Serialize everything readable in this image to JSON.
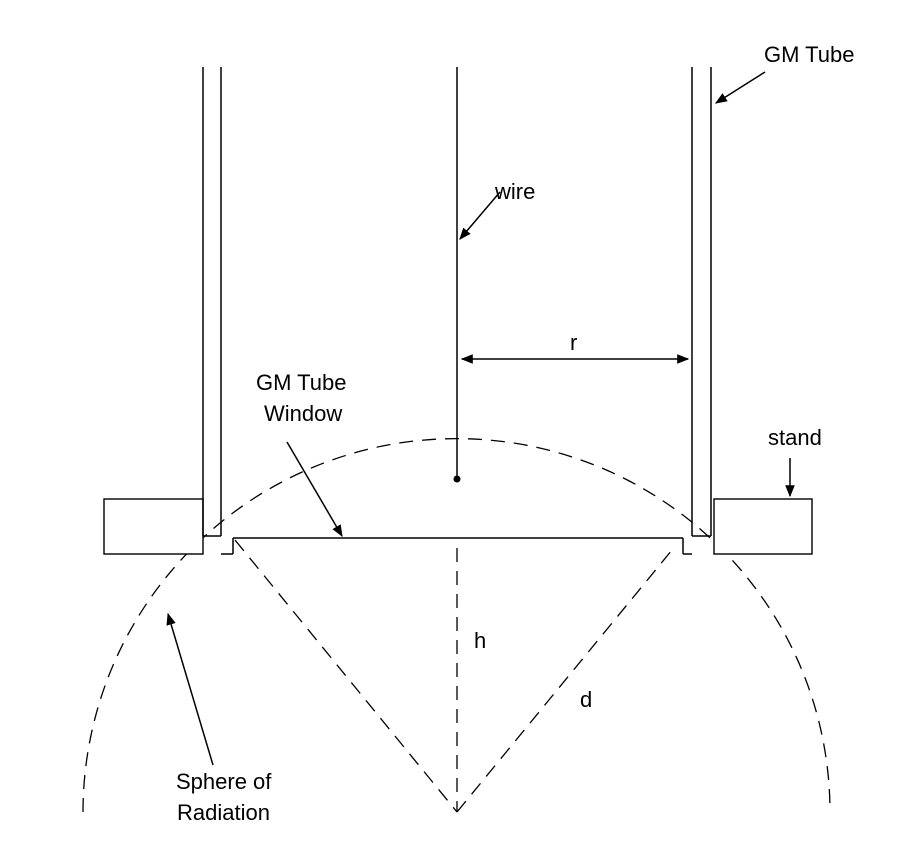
{
  "labels": {
    "gm_tube": "GM Tube",
    "wire": "wire",
    "radius": "r",
    "window_line1": "GM Tube",
    "window_line2": "Window",
    "stand": "stand",
    "height": "h",
    "distance": "d",
    "sphere_line1": "Sphere of",
    "sphere_line2": "Radiation"
  },
  "colors": {
    "ink": "#000000",
    "background": "#ffffff"
  },
  "icons": {
    "arrowhead": "filled-triangle-arrowhead"
  }
}
